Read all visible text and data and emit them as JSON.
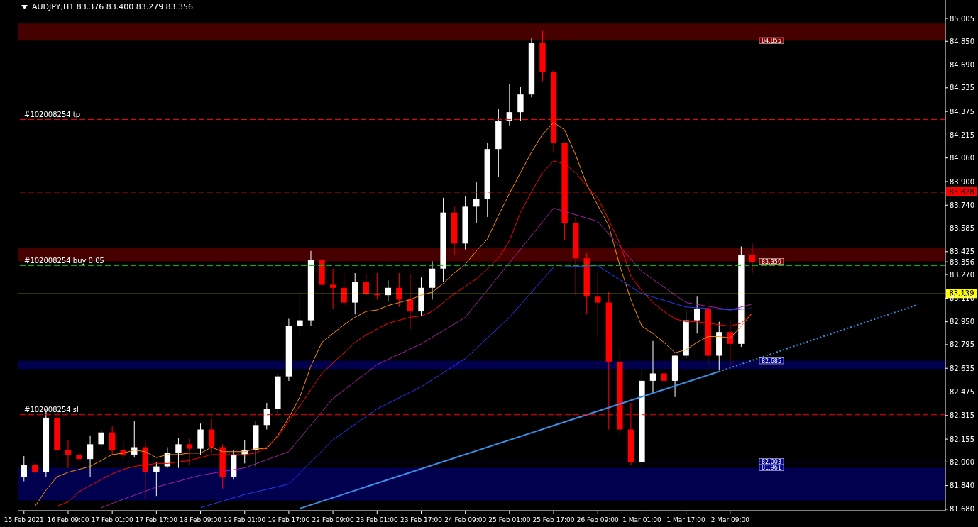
{
  "chart_data": {
    "type": "candlestick",
    "title": "AUDJPY,H1  83.376 83.400 83.279 83.356",
    "categories": [
      "15 Feb 2021",
      null,
      null,
      null,
      "16 Feb 09:00",
      null,
      null,
      null,
      "17 Feb 01:00",
      null,
      null,
      null,
      "17 Feb 17:00",
      null,
      null,
      null,
      "18 Feb 09:00",
      null,
      null,
      null,
      "19 Feb 01:00",
      null,
      null,
      null,
      "19 Feb 17:00",
      null,
      null,
      null,
      "22 Feb 09:00",
      null,
      null,
      null,
      "23 Feb 01:00",
      null,
      null,
      null,
      "23 Feb 17:00",
      null,
      null,
      null,
      "24 Feb 09:00",
      null,
      null,
      null,
      "25 Feb 01:00",
      null,
      null,
      null,
      "25 Feb 17:00",
      null,
      null,
      null,
      "26 Feb 09:00",
      null,
      null,
      null,
      "1 Mar 01:00",
      null,
      null,
      null,
      "1 Mar 17:00",
      null,
      null,
      null,
      "2 Mar 09:00",
      null,
      null,
      null,
      null,
      null,
      null,
      null,
      null,
      null,
      null,
      null,
      null,
      null,
      null,
      null,
      null,
      null,
      null,
      null
    ],
    "ohlc": [
      [
        81.9,
        82.04,
        81.87,
        81.98
      ],
      [
        81.98,
        82.0,
        81.9,
        81.93
      ],
      [
        81.93,
        82.36,
        81.9,
        82.3
      ],
      [
        82.3,
        82.42,
        82.02,
        82.08
      ],
      [
        82.08,
        82.15,
        81.96,
        82.05
      ],
      [
        82.05,
        82.23,
        81.86,
        82.02
      ],
      [
        82.02,
        82.18,
        81.9,
        82.12
      ],
      [
        82.12,
        82.22,
        82.1,
        82.2
      ],
      [
        82.2,
        82.24,
        82.05,
        82.08
      ],
      [
        82.08,
        82.14,
        82.02,
        82.05
      ],
      [
        82.05,
        82.28,
        82.03,
        82.1
      ],
      [
        82.1,
        82.15,
        81.75,
        81.93
      ],
      [
        81.93,
        82.0,
        81.77,
        81.97
      ],
      [
        81.97,
        82.1,
        81.96,
        82.06
      ],
      [
        82.06,
        82.16,
        81.96,
        82.12
      ],
      [
        82.12,
        82.16,
        81.98,
        82.09
      ],
      [
        82.09,
        82.26,
        82.05,
        82.22
      ],
      [
        82.22,
        82.29,
        82.06,
        82.1
      ],
      [
        82.1,
        82.12,
        81.82,
        81.9
      ],
      [
        81.9,
        82.08,
        81.88,
        82.05
      ],
      [
        82.05,
        82.15,
        81.99,
        82.08
      ],
      [
        82.08,
        82.28,
        81.97,
        82.25
      ],
      [
        82.25,
        82.4,
        82.22,
        82.36
      ],
      [
        82.36,
        82.6,
        82.33,
        82.58
      ],
      [
        82.58,
        82.97,
        82.55,
        82.92
      ],
      [
        82.92,
        83.15,
        82.86,
        82.96
      ],
      [
        82.96,
        83.43,
        82.92,
        83.37
      ],
      [
        83.37,
        83.41,
        83.08,
        83.2
      ],
      [
        83.2,
        83.31,
        83.04,
        83.18
      ],
      [
        83.18,
        83.28,
        83.06,
        83.08
      ],
      [
        83.08,
        83.28,
        83.0,
        83.22
      ],
      [
        83.22,
        83.27,
        83.12,
        83.14
      ],
      [
        83.14,
        83.28,
        83.1,
        83.13
      ],
      [
        83.13,
        83.23,
        83.09,
        83.18
      ],
      [
        83.18,
        83.28,
        83.05,
        83.1
      ],
      [
        83.1,
        83.27,
        82.9,
        83.02
      ],
      [
        83.02,
        83.25,
        82.99,
        83.18
      ],
      [
        83.18,
        83.36,
        83.1,
        83.31
      ],
      [
        83.31,
        83.79,
        83.22,
        83.69
      ],
      [
        83.69,
        83.73,
        83.4,
        83.48
      ],
      [
        83.48,
        83.8,
        83.44,
        83.73
      ],
      [
        83.73,
        83.9,
        83.62,
        83.78
      ],
      [
        83.78,
        84.16,
        83.66,
        84.12
      ],
      [
        84.12,
        84.39,
        83.93,
        84.31
      ],
      [
        84.31,
        84.56,
        84.28,
        84.37
      ],
      [
        84.37,
        84.54,
        84.31,
        84.49
      ],
      [
        84.49,
        84.87,
        84.47,
        84.84
      ],
      [
        84.84,
        84.92,
        84.58,
        84.64
      ],
      [
        84.64,
        84.66,
        84.1,
        84.16
      ],
      [
        84.16,
        84.16,
        83.5,
        83.62
      ],
      [
        83.62,
        83.66,
        83.13,
        83.38
      ],
      [
        83.38,
        83.42,
        83.0,
        83.12
      ],
      [
        83.12,
        83.28,
        82.85,
        83.08
      ],
      [
        83.08,
        83.15,
        82.22,
        82.68
      ],
      [
        82.68,
        82.77,
        82.18,
        82.22
      ],
      [
        82.22,
        82.4,
        81.98,
        82.0
      ],
      [
        82.0,
        82.63,
        81.97,
        82.55
      ],
      [
        82.55,
        82.82,
        82.46,
        82.6
      ],
      [
        82.6,
        82.82,
        82.46,
        82.55
      ],
      [
        82.55,
        82.72,
        82.44,
        82.72
      ],
      [
        82.72,
        83.03,
        82.7,
        82.96
      ],
      [
        82.96,
        83.12,
        82.87,
        83.04
      ],
      [
        83.04,
        83.08,
        82.66,
        82.72
      ],
      [
        82.72,
        82.95,
        82.62,
        82.88
      ],
      [
        82.88,
        82.96,
        82.65,
        82.8
      ],
      [
        82.8,
        83.46,
        82.78,
        83.4
      ],
      [
        83.4,
        83.48,
        83.28,
        83.356
      ],
      null,
      null,
      null,
      null,
      null,
      null,
      null,
      null,
      null,
      null,
      null,
      null,
      null,
      null,
      null,
      null,
      null
    ],
    "series": [
      {
        "type": "line",
        "color": "#ff8c00",
        "values": [
          null,
          81.7,
          81.81,
          81.9,
          81.93,
          81.95,
          81.97,
          82.01,
          82.05,
          82.06,
          82.08,
          82.07,
          82.03,
          82.05,
          82.05,
          82.06,
          82.06,
          82.1,
          82.07,
          82.07,
          82.07,
          82.09,
          82.09,
          82.18,
          82.3,
          82.44,
          82.65,
          82.81,
          82.87,
          82.93,
          82.98,
          83.02,
          83.03,
          83.06,
          83.08,
          83.1,
          83.13,
          83.15,
          83.21,
          83.28,
          83.34,
          83.43,
          83.51,
          83.67,
          83.82,
          83.96,
          84.1,
          84.22,
          84.3,
          84.25,
          84.08,
          83.88,
          83.74,
          83.6,
          83.33,
          83.1,
          82.92,
          82.87,
          82.81,
          82.74,
          82.76,
          82.81,
          82.85,
          82.85,
          82.84,
          82.92,
          83.01,
          null,
          null,
          null,
          null,
          null,
          null,
          null,
          null,
          null,
          null,
          null,
          null,
          null,
          null,
          null,
          null,
          null
        ]
      },
      {
        "type": "line",
        "color": "#ff0000",
        "values": [
          null,
          null,
          null,
          81.7,
          81.73,
          81.8,
          81.84,
          81.88,
          81.92,
          81.95,
          81.97,
          81.98,
          81.99,
          81.99,
          82.0,
          82.01,
          82.03,
          82.05,
          82.05,
          82.05,
          82.05,
          82.06,
          82.1,
          82.17,
          82.28,
          82.38,
          82.49,
          82.6,
          82.67,
          82.74,
          82.81,
          82.86,
          82.9,
          82.94,
          82.96,
          82.98,
          82.99,
          83.02,
          83.08,
          83.14,
          83.19,
          83.24,
          83.31,
          83.38,
          83.5,
          83.69,
          83.83,
          83.96,
          84.04,
          84.02,
          83.96,
          83.87,
          83.79,
          83.64,
          83.48,
          83.26,
          83.16,
          83.08,
          83.02,
          82.97,
          82.95,
          82.95,
          82.94,
          82.93,
          82.92,
          82.94,
          83.01,
          null,
          null,
          null,
          null,
          null,
          null,
          null,
          null,
          null,
          null,
          null,
          null,
          null,
          null,
          null,
          null,
          null
        ]
      },
      {
        "type": "line",
        "color": "#a020a0",
        "values": [
          null,
          null,
          null,
          null,
          null,
          null,
          null,
          81.69,
          81.72,
          null,
          null,
          null,
          81.83,
          null,
          null,
          null,
          81.91,
          null,
          null,
          null,
          81.96,
          null,
          null,
          null,
          82.07,
          null,
          null,
          null,
          82.43,
          null,
          null,
          null,
          82.66,
          null,
          null,
          null,
          82.8,
          null,
          null,
          null,
          82.98,
          null,
          null,
          null,
          83.35,
          null,
          null,
          null,
          83.72,
          null,
          null,
          null,
          83.63,
          null,
          null,
          null,
          83.29,
          null,
          null,
          null,
          83.08,
          null,
          null,
          null,
          83.03,
          null,
          83.07,
          null,
          null,
          null,
          null,
          null,
          null,
          null,
          null,
          null,
          null,
          null,
          null,
          null,
          null,
          null,
          null,
          null
        ]
      },
      {
        "type": "line",
        "color": "#1e3cff",
        "values": [
          null,
          null,
          null,
          null,
          null,
          null,
          null,
          null,
          null,
          null,
          null,
          null,
          null,
          null,
          null,
          null,
          81.69,
          null,
          null,
          null,
          81.78,
          null,
          null,
          null,
          81.85,
          null,
          null,
          null,
          82.15,
          null,
          null,
          null,
          82.36,
          null,
          null,
          null,
          82.51,
          null,
          null,
          null,
          82.7,
          null,
          null,
          null,
          82.98,
          null,
          null,
          null,
          83.32,
          null,
          null,
          null,
          83.33,
          null,
          null,
          null,
          83.14,
          null,
          null,
          null,
          83.05,
          null,
          null,
          null,
          83.03,
          null,
          83.04,
          null,
          null,
          null,
          null,
          null,
          null,
          null,
          null,
          null,
          null,
          null,
          null,
          null,
          null,
          null,
          null,
          null
        ]
      },
      {
        "type": "line",
        "color": "#3a8ee6",
        "line_style": "solid",
        "values": [
          null,
          null,
          null,
          null,
          null,
          null,
          null,
          null,
          null,
          null,
          null,
          null,
          null,
          null,
          null,
          null,
          null,
          null,
          null,
          null,
          null,
          null,
          null,
          null,
          null,
          81.685,
          null,
          null,
          null,
          null,
          null,
          null,
          null,
          null,
          null,
          null,
          null,
          null,
          null,
          null,
          null,
          null,
          null,
          null,
          null,
          null,
          null,
          null,
          null,
          null,
          null,
          null,
          null,
          null,
          null,
          null,
          null,
          null,
          null,
          null,
          null,
          null,
          null,
          82.613,
          null,
          null,
          null,
          null,
          null,
          null,
          null,
          null,
          null,
          null,
          null,
          null,
          null,
          null,
          null,
          null,
          null,
          null,
          null,
          null
        ]
      },
      {
        "type": "line",
        "color": "#3a8ee6",
        "line_style": "dotted",
        "values": [
          null,
          null,
          null,
          null,
          null,
          null,
          null,
          null,
          null,
          null,
          null,
          null,
          null,
          null,
          null,
          null,
          null,
          null,
          null,
          null,
          null,
          null,
          null,
          null,
          null,
          null,
          null,
          null,
          null,
          null,
          null,
          null,
          null,
          null,
          null,
          null,
          null,
          null,
          null,
          null,
          null,
          null,
          null,
          null,
          null,
          null,
          null,
          null,
          null,
          null,
          null,
          null,
          null,
          null,
          null,
          null,
          null,
          null,
          null,
          null,
          null,
          null,
          null,
          82.613,
          null,
          null,
          null,
          null,
          null,
          null,
          null,
          null,
          null,
          null,
          null,
          null,
          null,
          null,
          null,
          null,
          null,
          83.066,
          null,
          null
        ]
      }
    ],
    "ylim": [
      81.67,
      85.13
    ],
    "yticks": [
      {
        "value": 85.005,
        "label": "85.005"
      },
      {
        "value": 84.85,
        "label": "84.850"
      },
      {
        "value": 84.69,
        "label": "84.690"
      },
      {
        "value": 84.535,
        "label": "84.535"
      },
      {
        "value": 84.375,
        "label": "84.375"
      },
      {
        "value": 84.215,
        "label": "84.215"
      },
      {
        "value": 84.06,
        "label": "84.060"
      },
      {
        "value": 83.9,
        "label": "83.900"
      },
      {
        "value": 83.74,
        "label": "83.740"
      },
      {
        "value": 83.585,
        "label": "83.585"
      },
      {
        "value": 83.425,
        "label": "83.425"
      },
      {
        "value": 83.356,
        "label": "83.356"
      },
      {
        "value": 83.27,
        "label": "83.270"
      },
      {
        "value": 83.11,
        "label": "83.110"
      },
      {
        "value": 82.95,
        "label": "82.950"
      },
      {
        "value": 82.795,
        "label": "82.795"
      },
      {
        "value": 82.635,
        "label": "82.635"
      },
      {
        "value": 82.475,
        "label": "82.475"
      },
      {
        "value": 82.315,
        "label": "82.315"
      },
      {
        "value": 82.155,
        "label": "82.155"
      },
      {
        "value": 82.0,
        "label": "82.000"
      },
      {
        "value": 81.84,
        "label": "81.840"
      },
      {
        "value": 81.68,
        "label": "81.680"
      }
    ],
    "bands": [
      {
        "axis": "y",
        "from": 84.855,
        "to": 84.97,
        "label": "84.855",
        "color": "#800000"
      },
      {
        "axis": "y",
        "from": 83.359,
        "to": 83.45,
        "label": "83.359",
        "color": "#800000"
      },
      {
        "axis": "y",
        "from": 82.685,
        "to": 82.63,
        "label": "82.685",
        "color": "#000090"
      },
      {
        "axis": "y",
        "from": 82.003,
        "to": 81.995,
        "label": "82.003",
        "color": "#000090"
      },
      {
        "axis": "y",
        "from": 81.961,
        "to": 81.74,
        "label": "81.961",
        "color": "#000090"
      }
    ],
    "ref_lines": [
      {
        "axis": "y",
        "value": 84.32,
        "color": "#ff0000",
        "line_style": "dashed"
      },
      {
        "axis": "y",
        "value": 83.828,
        "label": "83.828",
        "color": "#ff0000",
        "line_style": "dashed"
      },
      {
        "axis": "y",
        "value": 83.33,
        "color": "#00c000",
        "line_style": "dashed"
      },
      {
        "axis": "y",
        "value": 83.139,
        "label": "83.139",
        "color": "#ffff00",
        "line_style": "solid"
      },
      {
        "axis": "y",
        "value": 82.32,
        "color": "#ff0000",
        "line_style": "dashed"
      }
    ],
    "annotations": [
      {
        "text": "#102008254 tp",
        "y": 84.32
      },
      {
        "text": "#102008254 buy 0.05",
        "y": 83.33
      },
      {
        "text": "#102008254 sl",
        "y": 82.32
      }
    ],
    "grid": false
  }
}
